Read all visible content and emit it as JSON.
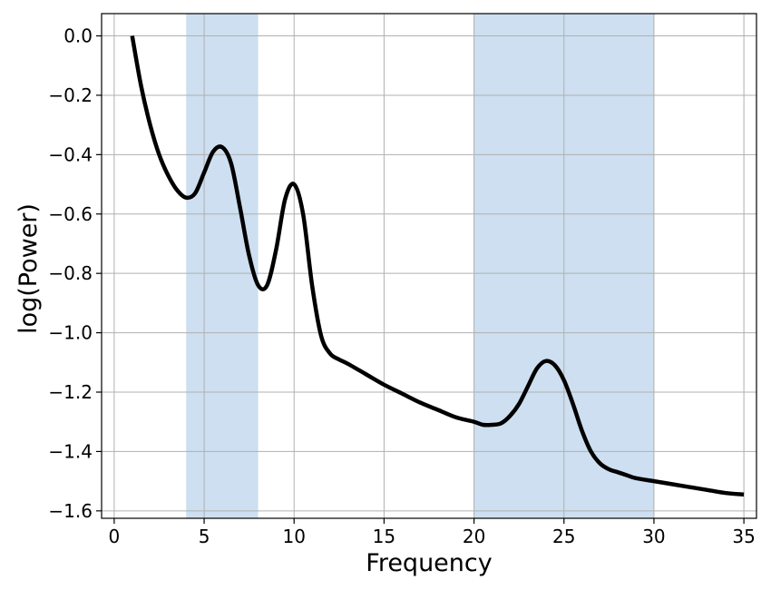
{
  "chart_data": {
    "type": "line",
    "title": "",
    "xlabel": "Frequency",
    "ylabel": "log(Power)",
    "xlim": [
      -0.7,
      35.7
    ],
    "ylim": [
      -1.625,
      0.075
    ],
    "xticks": [
      0,
      5,
      10,
      15,
      20,
      25,
      30,
      35
    ],
    "xtick_labels": [
      "0",
      "5",
      "10",
      "15",
      "20",
      "25",
      "30",
      "35"
    ],
    "yticks": [
      0.0,
      -0.2,
      -0.4,
      -0.6,
      -0.8,
      -1.0,
      -1.2,
      -1.4,
      -1.6
    ],
    "ytick_labels": [
      "0.0",
      "−0.2",
      "−0.4",
      "−0.6",
      "−0.8",
      "−1.0",
      "−1.2",
      "−1.4",
      "−1.6"
    ],
    "grid": true,
    "shaded_bands": [
      {
        "x_start": 4,
        "x_end": 8
      },
      {
        "x_start": 20,
        "x_end": 30
      }
    ],
    "series": [
      {
        "x": [
          1,
          1.5,
          2,
          2.5,
          3,
          3.5,
          4,
          4.5,
          5,
          5.5,
          6,
          6.5,
          7,
          7.5,
          8,
          8.5,
          9,
          9.5,
          10,
          10.5,
          11,
          11.5,
          12,
          12.5,
          13,
          14,
          15,
          16,
          17,
          18,
          19,
          20,
          20.5,
          21,
          21.5,
          22,
          22.5,
          23,
          23.5,
          24,
          24.5,
          25,
          25.5,
          26,
          26.5,
          27,
          27.5,
          28,
          28.5,
          29,
          30,
          31,
          32,
          33,
          34,
          35
        ],
        "y": [
          0.0,
          -0.17,
          -0.3,
          -0.4,
          -0.47,
          -0.52,
          -0.545,
          -0.53,
          -0.46,
          -0.39,
          -0.375,
          -0.43,
          -0.58,
          -0.74,
          -0.84,
          -0.84,
          -0.72,
          -0.55,
          -0.5,
          -0.6,
          -0.84,
          -1.01,
          -1.07,
          -1.09,
          -1.105,
          -1.14,
          -1.175,
          -1.205,
          -1.235,
          -1.26,
          -1.285,
          -1.3,
          -1.31,
          -1.31,
          -1.305,
          -1.28,
          -1.24,
          -1.18,
          -1.12,
          -1.095,
          -1.11,
          -1.16,
          -1.24,
          -1.33,
          -1.4,
          -1.44,
          -1.46,
          -1.47,
          -1.48,
          -1.49,
          -1.5,
          -1.51,
          -1.52,
          -1.53,
          -1.54,
          -1.545
        ]
      }
    ],
    "colors": {
      "line": "#000000",
      "band": "#cddff0",
      "grid": "#b0b0b0",
      "frame": "#000000",
      "background": "#ffffff"
    }
  }
}
